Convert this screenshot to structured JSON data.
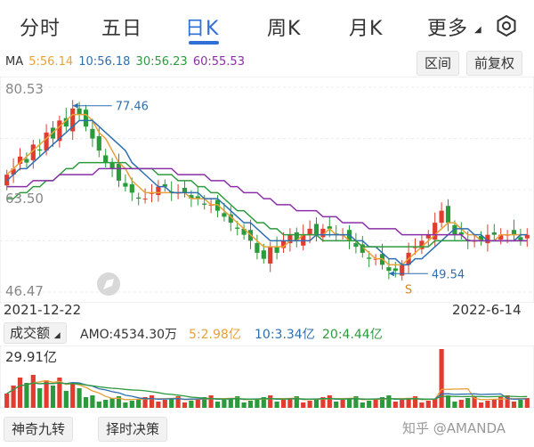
{
  "tabs": [
    {
      "label": "分时",
      "active": false
    },
    {
      "label": "五日",
      "active": false
    },
    {
      "label": "日K",
      "active": true
    },
    {
      "label": "周K",
      "active": false
    },
    {
      "label": "月K",
      "active": false
    },
    {
      "label": "更多",
      "active": false
    }
  ],
  "ma": {
    "prefix": "MA",
    "ma5": "5:56.14",
    "ma10": "10:56.18",
    "ma30": "30:56.23",
    "ma60": "60:55.53",
    "colors": {
      "ma5": "#e8a13a",
      "ma10": "#2f6fb0",
      "ma30": "#2e9a3e",
      "ma60": "#8b2fa8"
    }
  },
  "buttons": {
    "interval": "区间",
    "adjust": "前复权"
  },
  "price_axis": {
    "top": "80.53",
    "mid": "63.50",
    "bottom": "46.47"
  },
  "annotations": {
    "high": "77.46",
    "low": "49.54",
    "signal": "S"
  },
  "dates": {
    "start": "2021-12-22",
    "end": "2022-6-14"
  },
  "volume": {
    "label": "成交额",
    "amo": "AMO:4534.30万",
    "v5": "5:2.98亿",
    "v10": "10:3.34亿",
    "v20": "20:4.44亿",
    "max": "29.91亿"
  },
  "bottom": {
    "btn1": "神奇九转",
    "btn2": "择时决策",
    "watermark": "知乎 @AMANDA"
  },
  "colors": {
    "up": "#e03c2f",
    "down": "#2a9a3a",
    "accent": "#2f6fd6"
  },
  "chart_data": {
    "type": "candlestick",
    "ylim": [
      46.47,
      80.53
    ],
    "x_range": [
      "2021-12-22",
      "2022-6-14"
    ],
    "close": [
      66,
      67,
      69,
      68,
      71,
      70,
      73,
      72,
      75,
      74,
      77,
      76,
      74,
      72,
      70,
      68,
      67,
      65,
      64,
      63,
      62,
      62,
      63,
      64,
      64,
      63,
      63,
      63,
      62,
      62,
      61,
      61,
      60,
      59,
      58,
      57,
      56,
      55,
      53,
      52,
      54,
      53,
      55,
      56,
      55,
      56,
      57,
      56,
      57,
      57,
      56,
      56,
      55,
      54,
      53,
      52,
      52,
      51,
      50,
      50,
      51,
      53,
      54,
      55,
      56,
      58,
      60,
      58,
      56,
      56,
      55,
      55,
      55,
      56,
      56,
      56,
      56,
      56,
      55,
      56
    ],
    "ma5": [
      66,
      67,
      68,
      69,
      70,
      71,
      72,
      73,
      74,
      75,
      76,
      76,
      76,
      75,
      73,
      72,
      70,
      68,
      67,
      65,
      64,
      63,
      63,
      63,
      63,
      63,
      63,
      63,
      62,
      62,
      62,
      61,
      61,
      60,
      59,
      58,
      57,
      56,
      55,
      54,
      54,
      54,
      54,
      55,
      55,
      56,
      56,
      56,
      56,
      57,
      56,
      56,
      55,
      55,
      54,
      53,
      52,
      52,
      51,
      51,
      51,
      52,
      53,
      54,
      55,
      56,
      57,
      58,
      58,
      57,
      56,
      56,
      55,
      55,
      55,
      56,
      56,
      56,
      56,
      56
    ],
    "ma10": [
      65,
      66,
      67,
      67,
      68,
      69,
      70,
      71,
      72,
      73,
      74,
      75,
      75,
      75,
      74,
      73,
      72,
      71,
      70,
      68,
      67,
      66,
      65,
      64,
      64,
      63,
      63,
      63,
      63,
      63,
      62,
      62,
      62,
      61,
      60,
      59,
      58,
      58,
      57,
      56,
      55,
      55,
      55,
      55,
      55,
      55,
      55,
      56,
      56,
      56,
      56,
      56,
      56,
      55,
      55,
      54,
      54,
      53,
      52,
      52,
      51,
      51,
      52,
      52,
      53,
      54,
      55,
      56,
      57,
      57,
      57,
      56,
      56,
      55,
      55,
      55,
      55,
      55,
      56,
      56
    ],
    "ma30": [
      62,
      62,
      63,
      63,
      64,
      64,
      65,
      65,
      66,
      67,
      67,
      68,
      68,
      68,
      68,
      68,
      68,
      68,
      68,
      67,
      67,
      67,
      67,
      66,
      66,
      66,
      65,
      65,
      65,
      64,
      64,
      63,
      63,
      62,
      61,
      60,
      60,
      59,
      58,
      58,
      57,
      57,
      56,
      56,
      56,
      56,
      56,
      56,
      55,
      55,
      55,
      55,
      55,
      55,
      54,
      54,
      54,
      54,
      54,
      54,
      54,
      54,
      54,
      54,
      54,
      55,
      55,
      55,
      55,
      55,
      55,
      55,
      55,
      55,
      55,
      55,
      55,
      55,
      55,
      55
    ],
    "ma60": [
      64,
      64,
      64,
      64,
      65,
      65,
      65,
      65,
      66,
      66,
      66,
      66,
      66,
      66,
      67,
      67,
      67,
      67,
      67,
      67,
      67,
      67,
      67,
      67,
      67,
      67,
      66,
      66,
      66,
      66,
      66,
      65,
      65,
      65,
      64,
      64,
      63,
      63,
      63,
      62,
      62,
      61,
      61,
      61,
      60,
      60,
      60,
      60,
      59,
      59,
      59,
      58,
      58,
      58,
      58,
      57,
      57,
      57,
      57,
      57,
      56,
      56,
      56,
      56,
      56,
      56,
      56,
      56,
      56,
      56,
      55,
      55,
      55,
      55,
      55,
      55,
      55,
      55,
      55,
      55
    ],
    "high_point": 77.46,
    "low_point": 49.54
  }
}
